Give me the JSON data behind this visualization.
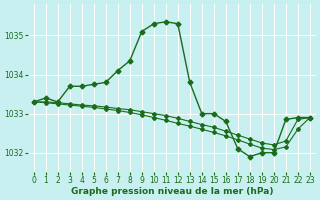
{
  "background_color": "#c8f0f0",
  "grid_color": "#ffffff",
  "line_color": "#1a6b1a",
  "xlabel": "Graphe pression niveau de la mer (hPa)",
  "xlabel_fontsize": 6.5,
  "tick_fontsize": 5.5,
  "ylim": [
    1031.5,
    1035.8
  ],
  "xlim": [
    -0.5,
    23.5
  ],
  "yticks": [
    1032,
    1033,
    1034,
    1035
  ],
  "xticks": [
    0,
    1,
    2,
    3,
    4,
    5,
    6,
    7,
    8,
    9,
    10,
    11,
    12,
    13,
    14,
    15,
    16,
    17,
    18,
    19,
    20,
    21,
    22,
    23
  ],
  "series": [
    {
      "x": [
        0,
        1,
        2,
        3,
        4,
        5,
        6,
        7,
        8,
        9,
        10,
        11,
        12,
        13,
        14,
        15,
        16,
        17,
        18,
        19,
        20,
        21,
        22,
        23
      ],
      "y": [
        1033.3,
        1033.4,
        1033.3,
        1033.7,
        1033.7,
        1033.75,
        1033.8,
        1034.1,
        1034.35,
        1035.1,
        1035.3,
        1035.35,
        1035.3,
        1033.8,
        1033.0,
        1033.0,
        1032.8,
        1032.1,
        1031.9,
        1032.0,
        1032.0,
        1032.85,
        1032.9,
        1032.9
      ],
      "marker": "D",
      "markersize": 2.5,
      "linewidth": 1.0,
      "linestyle": "-"
    },
    {
      "x": [
        0,
        1,
        2,
        3,
        4,
        5,
        6,
        7,
        8,
        9,
        10,
        11,
        12,
        13,
        14,
        15,
        16,
        17,
        18,
        19,
        20,
        21,
        22,
        23
      ],
      "y": [
        1033.3,
        1033.3,
        1033.28,
        1033.25,
        1033.22,
        1033.2,
        1033.17,
        1033.13,
        1033.1,
        1033.05,
        1033.0,
        1032.95,
        1032.88,
        1032.8,
        1032.72,
        1032.65,
        1032.55,
        1032.45,
        1032.35,
        1032.25,
        1032.2,
        1032.3,
        1032.85,
        1032.9
      ],
      "marker": "D",
      "markersize": 2.0,
      "linewidth": 0.8,
      "linestyle": "-"
    },
    {
      "x": [
        0,
        1,
        2,
        3,
        4,
        5,
        6,
        7,
        8,
        9,
        10,
        11,
        12,
        13,
        14,
        15,
        16,
        17,
        18,
        19,
        20,
        21,
        22,
        23
      ],
      "y": [
        1033.3,
        1033.28,
        1033.25,
        1033.22,
        1033.19,
        1033.16,
        1033.12,
        1033.08,
        1033.03,
        1032.97,
        1032.9,
        1032.83,
        1032.75,
        1032.68,
        1032.6,
        1032.52,
        1032.43,
        1032.33,
        1032.22,
        1032.12,
        1032.08,
        1032.15,
        1032.6,
        1032.9
      ],
      "marker": "D",
      "markersize": 2.0,
      "linewidth": 0.8,
      "linestyle": "-"
    }
  ]
}
